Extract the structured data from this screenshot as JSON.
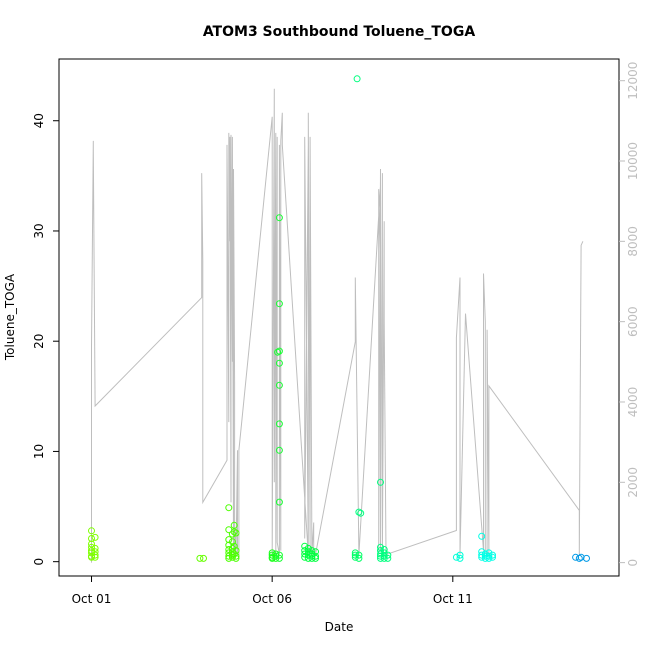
{
  "chart_data": {
    "type": "scatter",
    "title": "ATOM3 Southbound Toluene_TOGA",
    "xlabel": "Date",
    "ylabel": "Toluene_TOGA",
    "x_ticks": [
      "Oct 01",
      "Oct 06",
      "Oct 11"
    ],
    "x_tick_days": [
      1,
      6,
      11
    ],
    "xlim_days": [
      0.1,
      15.6
    ],
    "ylim": [
      -1.3,
      45.6
    ],
    "y_ticks": [
      0,
      10,
      20,
      30,
      40
    ],
    "y2_ticks": [
      0,
      2000,
      4000,
      6000,
      8000,
      10000,
      12000
    ],
    "y2lim": [
      -333,
      12540
    ],
    "y2_color": "#bebebe",
    "grid": false,
    "legend": "none",
    "points": [
      {
        "x": 1.0,
        "y": 2.8,
        "c": "#7fff00"
      },
      {
        "x": 1.0,
        "y": 2.1,
        "c": "#7fff00"
      },
      {
        "x": 1.0,
        "y": 1.6,
        "c": "#7fff00"
      },
      {
        "x": 1.0,
        "y": 1.3,
        "c": "#7fff00"
      },
      {
        "x": 1.0,
        "y": 1.0,
        "c": "#7fff00"
      },
      {
        "x": 1.0,
        "y": 0.8,
        "c": "#7fff00"
      },
      {
        "x": 1.0,
        "y": 0.5,
        "c": "#7fff00"
      },
      {
        "x": 1.0,
        "y": 0.4,
        "c": "#7fff00"
      },
      {
        "x": 1.1,
        "y": 2.2,
        "c": "#7fff00"
      },
      {
        "x": 1.1,
        "y": 1.2,
        "c": "#7fff00"
      },
      {
        "x": 1.1,
        "y": 0.9,
        "c": "#7fff00"
      },
      {
        "x": 1.1,
        "y": 0.6,
        "c": "#7fff00"
      },
      {
        "x": 1.1,
        "y": 0.4,
        "c": "#7fff00"
      },
      {
        "x": 4.0,
        "y": 0.3,
        "c": "#66ff00"
      },
      {
        "x": 4.1,
        "y": 0.3,
        "c": "#66ff00"
      },
      {
        "x": 4.8,
        "y": 4.9,
        "c": "#4cff00"
      },
      {
        "x": 4.8,
        "y": 2.9,
        "c": "#4cff00"
      },
      {
        "x": 4.8,
        "y": 2.0,
        "c": "#4cff00"
      },
      {
        "x": 4.8,
        "y": 1.5,
        "c": "#4cff00"
      },
      {
        "x": 4.8,
        "y": 1.1,
        "c": "#4cff00"
      },
      {
        "x": 4.8,
        "y": 0.8,
        "c": "#4cff00"
      },
      {
        "x": 4.8,
        "y": 0.5,
        "c": "#4cff00"
      },
      {
        "x": 4.8,
        "y": 0.3,
        "c": "#4cff00"
      },
      {
        "x": 4.9,
        "y": 2.5,
        "c": "#4cff00"
      },
      {
        "x": 4.9,
        "y": 1.8,
        "c": "#4cff00"
      },
      {
        "x": 4.9,
        "y": 1.2,
        "c": "#4cff00"
      },
      {
        "x": 4.9,
        "y": 0.9,
        "c": "#4cff00"
      },
      {
        "x": 4.9,
        "y": 0.6,
        "c": "#4cff00"
      },
      {
        "x": 4.9,
        "y": 0.4,
        "c": "#4cff00"
      },
      {
        "x": 4.95,
        "y": 3.3,
        "c": "#4cff00"
      },
      {
        "x": 4.95,
        "y": 2.7,
        "c": "#4cff00"
      },
      {
        "x": 4.95,
        "y": 1.4,
        "c": "#4cff00"
      },
      {
        "x": 4.95,
        "y": 0.7,
        "c": "#4cff00"
      },
      {
        "x": 5.0,
        "y": 2.6,
        "c": "#4cff00"
      },
      {
        "x": 5.0,
        "y": 1.0,
        "c": "#4cff00"
      },
      {
        "x": 5.0,
        "y": 0.5,
        "c": "#4cff00"
      },
      {
        "x": 5.0,
        "y": 0.3,
        "c": "#4cff00"
      },
      {
        "x": 6.0,
        "y": 0.8,
        "c": "#19ff19"
      },
      {
        "x": 6.0,
        "y": 0.6,
        "c": "#19ff19"
      },
      {
        "x": 6.0,
        "y": 0.4,
        "c": "#19ff19"
      },
      {
        "x": 6.0,
        "y": 0.3,
        "c": "#19ff19"
      },
      {
        "x": 6.1,
        "y": 0.7,
        "c": "#19ff19"
      },
      {
        "x": 6.1,
        "y": 0.5,
        "c": "#19ff19"
      },
      {
        "x": 6.1,
        "y": 0.3,
        "c": "#19ff19"
      },
      {
        "x": 6.2,
        "y": 31.2,
        "c": "#19ff33"
      },
      {
        "x": 6.2,
        "y": 23.4,
        "c": "#19ff33"
      },
      {
        "x": 6.2,
        "y": 19.1,
        "c": "#19ff33"
      },
      {
        "x": 6.2,
        "y": 18.0,
        "c": "#19ff33"
      },
      {
        "x": 6.2,
        "y": 16.0,
        "c": "#19ff33"
      },
      {
        "x": 6.2,
        "y": 12.5,
        "c": "#19ff33"
      },
      {
        "x": 6.2,
        "y": 10.1,
        "c": "#19ff33"
      },
      {
        "x": 6.2,
        "y": 5.4,
        "c": "#19ff33"
      },
      {
        "x": 6.15,
        "y": 19.0,
        "c": "#19ff33"
      },
      {
        "x": 6.2,
        "y": 0.6,
        "c": "#19ff33"
      },
      {
        "x": 6.2,
        "y": 0.3,
        "c": "#19ff33"
      },
      {
        "x": 6.9,
        "y": 1.4,
        "c": "#00ff40"
      },
      {
        "x": 6.9,
        "y": 1.0,
        "c": "#00ff40"
      },
      {
        "x": 6.9,
        "y": 0.7,
        "c": "#00ff40"
      },
      {
        "x": 6.9,
        "y": 0.4,
        "c": "#00ff40"
      },
      {
        "x": 7.0,
        "y": 1.2,
        "c": "#00ff40"
      },
      {
        "x": 7.0,
        "y": 0.9,
        "c": "#00ff40"
      },
      {
        "x": 7.0,
        "y": 0.6,
        "c": "#00ff40"
      },
      {
        "x": 7.0,
        "y": 0.3,
        "c": "#00ff40"
      },
      {
        "x": 7.1,
        "y": 1.0,
        "c": "#00ff40"
      },
      {
        "x": 7.1,
        "y": 0.7,
        "c": "#00ff40"
      },
      {
        "x": 7.1,
        "y": 0.5,
        "c": "#00ff40"
      },
      {
        "x": 7.1,
        "y": 0.3,
        "c": "#00ff40"
      },
      {
        "x": 7.2,
        "y": 0.9,
        "c": "#00ff40"
      },
      {
        "x": 7.2,
        "y": 0.5,
        "c": "#00ff40"
      },
      {
        "x": 7.2,
        "y": 0.3,
        "c": "#00ff40"
      },
      {
        "x": 8.3,
        "y": 0.8,
        "c": "#00ff66"
      },
      {
        "x": 8.3,
        "y": 0.6,
        "c": "#00ff66"
      },
      {
        "x": 8.3,
        "y": 0.4,
        "c": "#00ff66"
      },
      {
        "x": 8.4,
        "y": 0.6,
        "c": "#00ff66"
      },
      {
        "x": 8.4,
        "y": 0.3,
        "c": "#00ff66"
      },
      {
        "x": 8.35,
        "y": 43.8,
        "c": "#00ff7f"
      },
      {
        "x": 8.4,
        "y": 4.5,
        "c": "#00ff7f"
      },
      {
        "x": 8.45,
        "y": 4.4,
        "c": "#00ff7f"
      },
      {
        "x": 9.0,
        "y": 7.2,
        "c": "#00ff7f"
      },
      {
        "x": 9.0,
        "y": 1.3,
        "c": "#00ff7f"
      },
      {
        "x": 9.0,
        "y": 1.0,
        "c": "#00ff7f"
      },
      {
        "x": 9.0,
        "y": 0.7,
        "c": "#00ff7f"
      },
      {
        "x": 9.0,
        "y": 0.5,
        "c": "#00ff7f"
      },
      {
        "x": 9.0,
        "y": 0.3,
        "c": "#00ff7f"
      },
      {
        "x": 9.1,
        "y": 1.1,
        "c": "#00ff7f"
      },
      {
        "x": 9.1,
        "y": 0.8,
        "c": "#00ff7f"
      },
      {
        "x": 9.1,
        "y": 0.5,
        "c": "#00ff7f"
      },
      {
        "x": 9.1,
        "y": 0.3,
        "c": "#00ff7f"
      },
      {
        "x": 9.2,
        "y": 0.6,
        "c": "#00ff7f"
      },
      {
        "x": 9.2,
        "y": 0.3,
        "c": "#00ff7f"
      },
      {
        "x": 11.1,
        "y": 0.4,
        "c": "#00ffd8"
      },
      {
        "x": 11.2,
        "y": 0.6,
        "c": "#00ffd8"
      },
      {
        "x": 11.2,
        "y": 0.3,
        "c": "#00ffd8"
      },
      {
        "x": 11.8,
        "y": 2.3,
        "c": "#00ffe6"
      },
      {
        "x": 11.8,
        "y": 0.9,
        "c": "#00ffe6"
      },
      {
        "x": 11.8,
        "y": 0.6,
        "c": "#00ffe6"
      },
      {
        "x": 11.8,
        "y": 0.4,
        "c": "#00ffe6"
      },
      {
        "x": 11.9,
        "y": 0.7,
        "c": "#00ffe6"
      },
      {
        "x": 11.9,
        "y": 0.5,
        "c": "#00ffe6"
      },
      {
        "x": 11.9,
        "y": 0.3,
        "c": "#00ffe6"
      },
      {
        "x": 12.0,
        "y": 0.8,
        "c": "#00ffe6"
      },
      {
        "x": 12.0,
        "y": 0.5,
        "c": "#00ffe6"
      },
      {
        "x": 12.0,
        "y": 0.3,
        "c": "#00ffe6"
      },
      {
        "x": 12.1,
        "y": 0.6,
        "c": "#00ffe6"
      },
      {
        "x": 12.1,
        "y": 0.4,
        "c": "#00ffe6"
      },
      {
        "x": 14.4,
        "y": 0.4,
        "c": "#0099e6"
      },
      {
        "x": 14.5,
        "y": 0.3,
        "c": "#0099e6"
      },
      {
        "x": 14.55,
        "y": 0.4,
        "c": "#0099e6"
      },
      {
        "x": 14.7,
        "y": 0.3,
        "c": "#0099e6"
      }
    ],
    "altitude_series": {
      "axis": "right",
      "color": "#bebebe",
      "x": [
        1.0,
        1.0,
        1.05,
        1.05,
        1.1,
        1.1,
        4.05,
        4.05,
        4.08,
        4.08,
        4.75,
        4.75,
        4.8,
        4.8,
        4.83,
        4.83,
        4.86,
        4.86,
        4.9,
        4.9,
        4.93,
        4.93,
        4.96,
        4.96,
        5.0,
        5.0,
        5.04,
        5.04,
        5.08,
        5.08,
        6.0,
        6.0,
        6.06,
        6.06,
        6.1,
        6.1,
        6.14,
        6.14,
        6.2,
        6.2,
        6.24,
        6.24,
        6.28,
        6.28,
        7.0,
        7.0,
        6.9,
        6.9,
        7.0,
        7.0,
        7.05,
        7.05,
        7.1,
        7.1,
        7.15,
        7.15,
        7.2,
        7.2,
        8.3,
        8.3,
        8.4,
        8.4,
        9.0,
        9.0,
        8.95,
        8.95,
        9.0,
        9.0,
        9.05,
        9.05,
        9.1,
        9.1,
        9.15,
        9.15,
        11.1,
        11.1,
        11.2,
        11.2,
        11.35,
        11.35,
        11.85,
        11.85,
        11.9,
        11.9,
        11.95,
        11.95,
        12.0,
        12.0,
        14.5,
        14.5,
        14.55,
        14.6
      ],
      "y": [
        0,
        5400,
        10500,
        10300,
        3900,
        3900,
        6600,
        9700,
        7500,
        1500,
        2550,
        10400,
        3500,
        10700,
        8000,
        10600,
        1500,
        10650,
        5000,
        10600,
        200,
        9800,
        4500,
        200,
        800,
        200,
        2800,
        200,
        200,
        2800,
        11100,
        200,
        11800,
        2000,
        10700,
        200,
        10600,
        500,
        200,
        10400,
        300,
        10500,
        11200,
        10400,
        200,
        10400,
        600,
        10600,
        200,
        11200,
        300,
        10600,
        200,
        200,
        1000,
        200,
        200,
        200,
        5500,
        7100,
        200,
        200,
        9400,
        7400,
        9300,
        200,
        9800,
        300,
        9700,
        200,
        8500,
        6000,
        200,
        200,
        800,
        5600,
        7100,
        200,
        6200,
        6200,
        300,
        7200,
        6000,
        300,
        200,
        5800,
        200,
        4400,
        1300,
        200,
        7900,
        8000
      ]
    }
  }
}
